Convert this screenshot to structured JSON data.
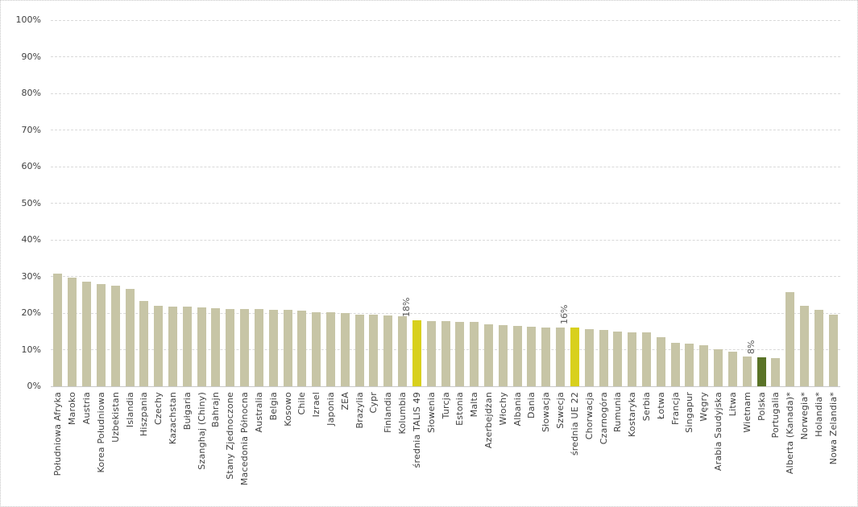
{
  "figure": {
    "background": "#ffffff",
    "border_color": "#c5c5c5"
  },
  "chart_data": {
    "type": "bar",
    "title": "",
    "xlabel": "",
    "ylabel": "",
    "legend": "none",
    "grid": true,
    "y_axis": {
      "min": 0,
      "max": 100,
      "step": 10,
      "tick_labels": [
        "0%",
        "10%",
        "20%",
        "30%",
        "40%",
        "50%",
        "60%",
        "70%",
        "80%",
        "90%",
        "100%"
      ]
    },
    "colors": {
      "bar_default": "#c7c5a6",
      "bar_highlight": "#d8d01d",
      "bar_poland": "#5a7327",
      "gridline": "#d9d9d9",
      "axis_line": "#c9c9c9",
      "tick_text": "#404040",
      "data_label_text": "#595959"
    },
    "bars": [
      {
        "category": "Południowa Afryka",
        "value": 30.8
      },
      {
        "category": "Maroko",
        "value": 29.6
      },
      {
        "category": "Austria",
        "value": 28.6
      },
      {
        "category": "Korea Południowa",
        "value": 27.9
      },
      {
        "category": "Uzbekistan",
        "value": 27.4
      },
      {
        "category": "Islandia",
        "value": 26.7
      },
      {
        "category": "Hiszpania",
        "value": 23.4
      },
      {
        "category": "Czechy",
        "value": 22.0
      },
      {
        "category": "Kazachstan",
        "value": 21.7
      },
      {
        "category": "Bułgaria",
        "value": 21.7
      },
      {
        "category": "Szanghaj (Chiny)",
        "value": 21.5
      },
      {
        "category": "Bahrajn",
        "value": 21.3
      },
      {
        "category": "Stany Zjednoczone",
        "value": 21.2
      },
      {
        "category": "Macedonia Północna",
        "value": 21.1
      },
      {
        "category": "Australia",
        "value": 21.0
      },
      {
        "category": "Belgia",
        "value": 20.9
      },
      {
        "category": "Kosowo",
        "value": 20.9
      },
      {
        "category": "Chile",
        "value": 20.6
      },
      {
        "category": "Izrael",
        "value": 20.2
      },
      {
        "category": "Japonia",
        "value": 20.2
      },
      {
        "category": "ZEA",
        "value": 19.9
      },
      {
        "category": "Brazylia",
        "value": 19.6
      },
      {
        "category": "Cypr",
        "value": 19.5
      },
      {
        "category": "Finlandia",
        "value": 19.4
      },
      {
        "category": "Kolumbia",
        "value": 19.2
      },
      {
        "category": "średnia TALIS 49",
        "value": 18.0,
        "role": "highlight",
        "data_label": "18%"
      },
      {
        "category": "Słowenia",
        "value": 17.9
      },
      {
        "category": "Turcja",
        "value": 17.9
      },
      {
        "category": "Estonia",
        "value": 17.6
      },
      {
        "category": "Malta",
        "value": 17.6
      },
      {
        "category": "Azerbejdżan",
        "value": 17.0
      },
      {
        "category": "Włochy",
        "value": 16.6
      },
      {
        "category": "Albania",
        "value": 16.4
      },
      {
        "category": "Dania",
        "value": 16.2
      },
      {
        "category": "Słowacja",
        "value": 16.0
      },
      {
        "category": "Szwecja",
        "value": 16.0
      },
      {
        "category": "średnia UE 22",
        "value": 16.0,
        "role": "highlight",
        "data_label": "16%"
      },
      {
        "category": "Chorwacja",
        "value": 15.5
      },
      {
        "category": "Czarnogóra",
        "value": 15.3
      },
      {
        "category": "Rumunia",
        "value": 14.9
      },
      {
        "category": "Kostaryka",
        "value": 14.7
      },
      {
        "category": "Serbia",
        "value": 14.7
      },
      {
        "category": "Łotwa",
        "value": 13.4
      },
      {
        "category": "Francja",
        "value": 11.9
      },
      {
        "category": "Singapur",
        "value": 11.6
      },
      {
        "category": "Węgry",
        "value": 11.3
      },
      {
        "category": "Arabia Saudyjska",
        "value": 10.2
      },
      {
        "category": "Litwa",
        "value": 9.4
      },
      {
        "category": "Wietnam",
        "value": 8.1
      },
      {
        "category": "Polska",
        "value": 8.0,
        "role": "poland",
        "data_label": "8%"
      },
      {
        "category": "Portugalia",
        "value": 7.6
      },
      {
        "category": "Alberta (Kanada)*",
        "value": 25.7
      },
      {
        "category": "Norwegia*",
        "value": 21.9
      },
      {
        "category": "Holandia*",
        "value": 20.9
      },
      {
        "category": "Nowa Zelandia*",
        "value": 19.5
      }
    ]
  }
}
